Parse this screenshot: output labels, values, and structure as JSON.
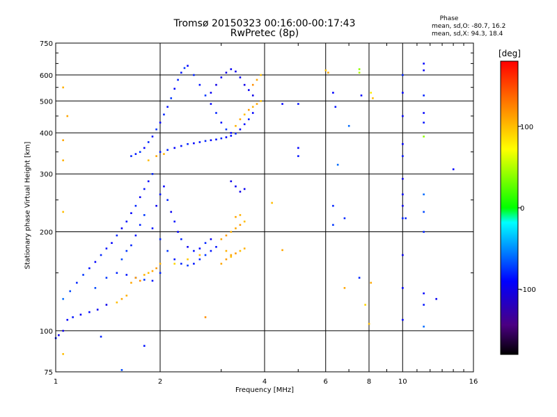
{
  "chart_data": {
    "type": "scatter",
    "title": "Tromsø 20150323 00:16:00-00:17:43",
    "subtitle": "RwPretec (8p)",
    "xlabel": "Frequency [MHz]",
    "ylabel": "Stationary phase Virtual Height [km]",
    "x_scale": "log",
    "y_scale": "log",
    "xlim": [
      1,
      16
    ],
    "ylim": [
      75,
      750
    ],
    "x_ticks": [
      1,
      2,
      4,
      6,
      8,
      10,
      16
    ],
    "y_ticks": [
      75,
      100,
      200,
      300,
      400,
      500,
      600,
      750
    ],
    "x_tick_labels": [
      "1",
      "2",
      "4",
      "6",
      "8",
      "10",
      "16"
    ],
    "y_tick_labels": [
      "75",
      "100",
      "200",
      "300",
      "400",
      "500",
      "600",
      "750"
    ],
    "grid": true,
    "phase_stats": {
      "title": "Phase",
      "o_line": "mean, sd,O: -80.7, 16.2",
      "x_line": "mean, sd,X:  94.3, 18.4"
    },
    "colorbar": {
      "title": "[deg]",
      "range": [
        -180,
        180
      ],
      "tick_labels": [
        "100",
        "0",
        "-100"
      ],
      "ticks": [
        100,
        0,
        -100
      ],
      "colormap": "rainbow"
    },
    "series": [
      {
        "points": [
          [
            1.02,
            97,
            -95
          ],
          [
            1.05,
            100,
            -100
          ],
          [
            1.08,
            108,
            -90
          ],
          [
            1.12,
            110,
            -85
          ],
          [
            1.18,
            112,
            -92
          ],
          [
            1.25,
            114,
            -88
          ],
          [
            1.32,
            116,
            -95
          ],
          [
            1.4,
            120,
            -98
          ],
          [
            1.05,
            125,
            -60
          ],
          [
            1.1,
            132,
            -70
          ],
          [
            1.15,
            140,
            -80
          ],
          [
            1.2,
            148,
            -75
          ],
          [
            1.25,
            155,
            -85
          ],
          [
            1.3,
            162,
            -90
          ],
          [
            1.35,
            170,
            -80
          ],
          [
            1.4,
            178,
            -85
          ],
          [
            1.45,
            185,
            -90
          ],
          [
            1.5,
            195,
            -80
          ],
          [
            1.55,
            205,
            -95
          ],
          [
            1.6,
            215,
            -85
          ],
          [
            1.65,
            228,
            -90
          ],
          [
            1.7,
            240,
            -80
          ],
          [
            1.75,
            255,
            -95
          ],
          [
            1.8,
            270,
            -85
          ],
          [
            1.85,
            285,
            -90
          ],
          [
            1.9,
            300,
            -80
          ],
          [
            1.95,
            240,
            -95
          ],
          [
            2.0,
            260,
            -85
          ],
          [
            2.05,
            275,
            -90
          ],
          [
            2.1,
            250,
            -80
          ],
          [
            2.15,
            230,
            -95
          ],
          [
            2.2,
            215,
            -85
          ],
          [
            2.25,
            200,
            -90
          ],
          [
            2.3,
            190,
            -80
          ],
          [
            2.4,
            180,
            -95
          ],
          [
            2.5,
            175,
            -85
          ],
          [
            2.6,
            178,
            -90
          ],
          [
            2.7,
            185,
            -80
          ],
          [
            2.8,
            190,
            -95
          ],
          [
            2.9,
            180,
            -85
          ],
          [
            1.55,
            165,
            -70
          ],
          [
            1.6,
            175,
            -75
          ],
          [
            1.65,
            182,
            -80
          ],
          [
            1.7,
            195,
            -85
          ],
          [
            1.75,
            210,
            -80
          ],
          [
            1.8,
            225,
            -75
          ],
          [
            1.9,
            205,
            -85
          ],
          [
            2.0,
            190,
            -80
          ],
          [
            2.1,
            175,
            -75
          ],
          [
            2.2,
            165,
            -85
          ],
          [
            2.3,
            160,
            -80
          ],
          [
            2.4,
            158,
            -75
          ],
          [
            2.5,
            160,
            -85
          ],
          [
            2.6,
            165,
            -80
          ],
          [
            2.7,
            170,
            -75
          ],
          [
            2.8,
            175,
            -85
          ],
          [
            1.3,
            135,
            -70
          ],
          [
            1.4,
            145,
            -75
          ],
          [
            1.5,
            150,
            -80
          ],
          [
            1.6,
            148,
            -85
          ],
          [
            1.7,
            145,
            -80
          ],
          [
            1.8,
            143,
            -75
          ],
          [
            1.9,
            142,
            -85
          ],
          [
            2.0,
            150,
            -80
          ],
          [
            1.65,
            140,
            110
          ],
          [
            1.7,
            145,
            115
          ],
          [
            1.75,
            142,
            120
          ],
          [
            1.8,
            148,
            105
          ],
          [
            1.85,
            150,
            100
          ],
          [
            1.9,
            152,
            110
          ],
          [
            1.95,
            155,
            115
          ],
          [
            2.0,
            160,
            105
          ],
          [
            1.5,
            122,
            100
          ],
          [
            1.55,
            125,
            110
          ],
          [
            1.6,
            128,
            105
          ],
          [
            2.2,
            160,
            90
          ],
          [
            2.4,
            165,
            95
          ],
          [
            2.6,
            170,
            100
          ],
          [
            1.65,
            340,
            -80
          ],
          [
            1.7,
            345,
            -85
          ],
          [
            1.75,
            350,
            -75
          ],
          [
            1.8,
            360,
            -90
          ],
          [
            1.85,
            375,
            -80
          ],
          [
            1.9,
            390,
            -85
          ],
          [
            1.95,
            410,
            -75
          ],
          [
            2.0,
            430,
            -90
          ],
          [
            2.05,
            455,
            -80
          ],
          [
            2.1,
            480,
            -85
          ],
          [
            2.15,
            510,
            -75
          ],
          [
            2.2,
            545,
            -90
          ],
          [
            2.25,
            580,
            -80
          ],
          [
            2.3,
            610,
            -85
          ],
          [
            2.35,
            630,
            -75
          ],
          [
            2.4,
            640,
            -90
          ],
          [
            2.5,
            600,
            -80
          ],
          [
            2.6,
            560,
            -85
          ],
          [
            2.7,
            520,
            -75
          ],
          [
            2.8,
            490,
            -90
          ],
          [
            2.9,
            460,
            -80
          ],
          [
            3.0,
            430,
            -85
          ],
          [
            3.1,
            410,
            -75
          ],
          [
            3.2,
            400,
            -90
          ],
          [
            2.0,
            350,
            -85
          ],
          [
            2.1,
            355,
            -80
          ],
          [
            2.2,
            360,
            -90
          ],
          [
            2.3,
            365,
            -85
          ],
          [
            2.4,
            370,
            -80
          ],
          [
            2.5,
            372,
            -90
          ],
          [
            2.6,
            375,
            -85
          ],
          [
            2.7,
            378,
            -80
          ],
          [
            2.8,
            380,
            -90
          ],
          [
            2.9,
            382,
            -85
          ],
          [
            3.0,
            385,
            -80
          ],
          [
            3.1,
            388,
            -90
          ],
          [
            3.2,
            392,
            -85
          ],
          [
            3.3,
            398,
            -80
          ],
          [
            3.4,
            410,
            -90
          ],
          [
            3.5,
            425,
            -85
          ],
          [
            3.6,
            440,
            -80
          ],
          [
            3.7,
            460,
            -90
          ],
          [
            2.8,
            530,
            -95
          ],
          [
            2.9,
            560,
            -100
          ],
          [
            3.0,
            590,
            -95
          ],
          [
            3.1,
            610,
            -100
          ],
          [
            3.2,
            625,
            -95
          ],
          [
            3.3,
            615,
            -100
          ],
          [
            3.4,
            590,
            -95
          ],
          [
            3.5,
            560,
            -100
          ],
          [
            3.6,
            540,
            -95
          ],
          [
            3.7,
            520,
            -100
          ],
          [
            3.3,
            420,
            105
          ],
          [
            3.4,
            440,
            110
          ],
          [
            3.5,
            455,
            100
          ],
          [
            3.6,
            470,
            115
          ],
          [
            3.7,
            480,
            105
          ],
          [
            3.8,
            490,
            110
          ],
          [
            3.9,
            500,
            100
          ],
          [
            3.7,
            560,
            120
          ],
          [
            3.8,
            580,
            110
          ],
          [
            3.9,
            600,
            100
          ],
          [
            1.85,
            330,
            100
          ],
          [
            1.95,
            340,
            110
          ],
          [
            2.05,
            345,
            105
          ],
          [
            3.0,
            190,
            110
          ],
          [
            3.1,
            195,
            115
          ],
          [
            3.2,
            200,
            105
          ],
          [
            3.3,
            205,
            110
          ],
          [
            3.4,
            210,
            115
          ],
          [
            3.5,
            215,
            100
          ],
          [
            3.1,
            175,
            105
          ],
          [
            3.2,
            170,
            110
          ],
          [
            3.3,
            172,
            115
          ],
          [
            3.4,
            175,
            100
          ],
          [
            3.5,
            178,
            105
          ],
          [
            3.0,
            160,
            110
          ],
          [
            3.1,
            165,
            115
          ],
          [
            3.2,
            168,
            100
          ],
          [
            3.3,
            222,
            110
          ],
          [
            3.4,
            225,
            105
          ],
          [
            3.2,
            285,
            -100
          ],
          [
            3.3,
            275,
            -95
          ],
          [
            3.4,
            265,
            -100
          ],
          [
            3.5,
            270,
            -95
          ],
          [
            4.5,
            490,
            -90
          ],
          [
            5.0,
            490,
            -85
          ],
          [
            5.0,
            360,
            -90
          ],
          [
            5.0,
            340,
            -85
          ],
          [
            6.0,
            620,
            100
          ],
          [
            6.1,
            610,
            110
          ],
          [
            6.3,
            530,
            -90
          ],
          [
            6.4,
            480,
            -85
          ],
          [
            7.0,
            420,
            -60
          ],
          [
            7.5,
            610,
            50
          ],
          [
            7.5,
            625,
            40
          ],
          [
            7.6,
            520,
            -90
          ],
          [
            8.1,
            530,
            80
          ],
          [
            8.2,
            510,
            100
          ],
          [
            10.0,
            600,
            -80
          ],
          [
            10.0,
            530,
            -90
          ],
          [
            10.0,
            450,
            -90
          ],
          [
            10.0,
            370,
            -90
          ],
          [
            10.0,
            340,
            -85
          ],
          [
            10.0,
            290,
            -100
          ],
          [
            10.0,
            260,
            -90
          ],
          [
            10.0,
            240,
            -95
          ],
          [
            10.0,
            220,
            -80
          ],
          [
            10.0,
            170,
            -95
          ],
          [
            10.0,
            135,
            -90
          ],
          [
            10.0,
            108,
            -90
          ],
          [
            10.2,
            220,
            -80
          ],
          [
            11.5,
            650,
            -90
          ],
          [
            11.5,
            620,
            -95
          ],
          [
            11.5,
            520,
            -80
          ],
          [
            11.5,
            460,
            -90
          ],
          [
            11.5,
            430,
            -85
          ],
          [
            11.5,
            390,
            40
          ],
          [
            11.5,
            260,
            -60
          ],
          [
            11.5,
            230,
            -70
          ],
          [
            11.5,
            200,
            -80
          ],
          [
            11.5,
            130,
            -90
          ],
          [
            11.5,
            120,
            -85
          ],
          [
            11.5,
            103,
            -60
          ],
          [
            12.5,
            125,
            -95
          ],
          [
            14.0,
            310,
            -90
          ],
          [
            6.3,
            240,
            -80
          ],
          [
            6.3,
            210,
            -75
          ],
          [
            6.5,
            320,
            -60
          ],
          [
            6.8,
            220,
            -80
          ],
          [
            7.5,
            145,
            -80
          ],
          [
            7.8,
            120,
            90
          ],
          [
            8.0,
            105,
            100
          ],
          [
            8.1,
            140,
            110
          ],
          [
            6.8,
            135,
            110
          ],
          [
            4.2,
            245,
            100
          ],
          [
            4.5,
            176,
            110
          ],
          [
            1.35,
            96,
            -80
          ],
          [
            1.55,
            76,
            -70
          ],
          [
            1.8,
            90,
            -85
          ],
          [
            2.7,
            110,
            120
          ],
          [
            1.05,
            85,
            100
          ],
          [
            1.05,
            230,
            100
          ],
          [
            1.05,
            330,
            105
          ],
          [
            1.05,
            380,
            110
          ],
          [
            1.05,
            550,
            105
          ],
          [
            1.08,
            450,
            110
          ],
          [
            1.0,
            95,
            -85
          ]
        ]
      }
    ]
  }
}
